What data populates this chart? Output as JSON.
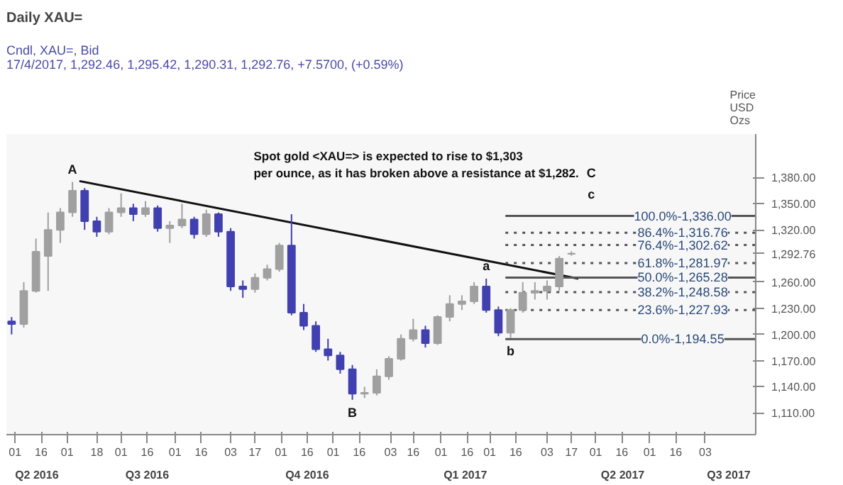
{
  "chart_data": {
    "type": "candlestick",
    "title": "Daily XAU=",
    "subtitle": "Cndl, XAU=, Bid\n17/4/2017, 1,292.46, 1,295.42, 1,290.31, 1,292.76, +7.5700, (+0.59%)",
    "ylabel": "Price\nUSD\nOzs",
    "x": [
      "2016-05-30",
      "2016-06-06",
      "2016-06-13",
      "2016-06-20",
      "2016-06-27",
      "2016-07-04",
      "2016-07-11",
      "2016-07-18",
      "2016-07-25",
      "2016-08-01",
      "2016-08-08",
      "2016-08-15",
      "2016-08-22",
      "2016-08-29",
      "2016-09-05",
      "2016-09-12",
      "2016-09-19",
      "2016-09-26",
      "2016-10-03",
      "2016-10-10",
      "2016-10-17",
      "2016-10-24",
      "2016-10-31",
      "2016-11-07",
      "2016-11-14",
      "2016-11-21",
      "2016-11-28",
      "2016-12-05",
      "2016-12-12",
      "2016-12-19",
      "2016-12-26",
      "2017-01-02",
      "2017-01-09",
      "2017-01-16",
      "2017-01-23",
      "2017-01-30",
      "2017-02-06",
      "2017-02-13",
      "2017-02-20",
      "2017-02-27",
      "2017-03-06",
      "2017-03-13",
      "2017-03-20",
      "2017-03-27",
      "2017-04-03",
      "2017-04-10",
      "2017-04-17"
    ],
    "ohlc": [
      [
        1215,
        1220,
        1200,
        1212
      ],
      [
        1212,
        1260,
        1208,
        1250
      ],
      [
        1250,
        1310,
        1248,
        1295
      ],
      [
        1290,
        1340,
        1250,
        1320
      ],
      [
        1320,
        1345,
        1305,
        1340
      ],
      [
        1340,
        1375,
        1335,
        1365
      ],
      [
        1365,
        1368,
        1320,
        1330
      ],
      [
        1330,
        1335,
        1312,
        1318
      ],
      [
        1318,
        1345,
        1315,
        1340
      ],
      [
        1340,
        1362,
        1335,
        1345
      ],
      [
        1345,
        1350,
        1330,
        1338
      ],
      [
        1338,
        1353,
        1335,
        1345
      ],
      [
        1345,
        1348,
        1318,
        1322
      ],
      [
        1322,
        1330,
        1305,
        1325
      ],
      [
        1325,
        1350,
        1322,
        1332
      ],
      [
        1332,
        1335,
        1310,
        1315
      ],
      [
        1315,
        1343,
        1312,
        1338
      ],
      [
        1338,
        1340,
        1312,
        1318
      ],
      [
        1318,
        1322,
        1250,
        1255
      ],
      [
        1255,
        1262,
        1242,
        1252
      ],
      [
        1252,
        1270,
        1248,
        1265
      ],
      [
        1265,
        1280,
        1262,
        1275
      ],
      [
        1275,
        1305,
        1272,
        1302
      ],
      [
        1302,
        1338,
        1222,
        1225
      ],
      [
        1225,
        1235,
        1205,
        1210
      ],
      [
        1210,
        1215,
        1180,
        1183
      ],
      [
        1183,
        1195,
        1170,
        1176
      ],
      [
        1176,
        1180,
        1155,
        1160
      ],
      [
        1160,
        1165,
        1125,
        1132
      ],
      [
        1132,
        1140,
        1127,
        1133
      ],
      [
        1133,
        1160,
        1130,
        1152
      ],
      [
        1152,
        1175,
        1148,
        1172
      ],
      [
        1172,
        1200,
        1170,
        1195
      ],
      [
        1195,
        1218,
        1192,
        1205
      ],
      [
        1205,
        1210,
        1185,
        1190
      ],
      [
        1190,
        1222,
        1188,
        1220
      ],
      [
        1220,
        1245,
        1215,
        1235
      ],
      [
        1235,
        1245,
        1228,
        1238
      ],
      [
        1238,
        1260,
        1235,
        1255
      ],
      [
        1255,
        1264,
        1225,
        1228
      ],
      [
        1228,
        1232,
        1198,
        1202
      ],
      [
        1202,
        1230,
        1196,
        1228
      ],
      [
        1228,
        1260,
        1225,
        1248
      ],
      [
        1248,
        1260,
        1240,
        1250
      ],
      [
        1250,
        1262,
        1240,
        1255
      ],
      [
        1255,
        1290,
        1250,
        1287
      ],
      [
        1292.46,
        1295.42,
        1290.31,
        1292.76
      ]
    ],
    "colors": [
      "#4040b0",
      "#a0a0a0",
      "#a0a0a0",
      "#a0a0a0",
      "#a0a0a0",
      "#a0a0a0",
      "#4040b0",
      "#4040b0",
      "#a0a0a0",
      "#a0a0a0",
      "#4040b0",
      "#a0a0a0",
      "#4040b0",
      "#a0a0a0",
      "#a0a0a0",
      "#4040b0",
      "#a0a0a0",
      "#4040b0",
      "#4040b0",
      "#4040b0",
      "#a0a0a0",
      "#a0a0a0",
      "#a0a0a0",
      "#4040b0",
      "#4040b0",
      "#4040b0",
      "#4040b0",
      "#4040b0",
      "#4040b0",
      "#a0a0a0",
      "#a0a0a0",
      "#a0a0a0",
      "#a0a0a0",
      "#a0a0a0",
      "#4040b0",
      "#a0a0a0",
      "#a0a0a0",
      "#a0a0a0",
      "#a0a0a0",
      "#4040b0",
      "#4040b0",
      "#a0a0a0",
      "#a0a0a0",
      "#a0a0a0",
      "#a0a0a0",
      "#a0a0a0",
      "#a0a0a0"
    ],
    "series": [
      {
        "type": "line",
        "x": [
          "2016-07-08",
          "2017-04-21"
        ],
        "values": [
          1376,
          1264
        ],
        "color": "#111111",
        "line_style": "solid"
      },
      {
        "type": "line",
        "x": [
          "2017-03-10",
          "2017-08-01"
        ],
        "values": [
          1336,
          1336
        ],
        "color": "#555555",
        "line_style": "solid"
      },
      {
        "type": "line",
        "x": [
          "2017-03-10",
          "2017-08-01"
        ],
        "values": [
          1316.76,
          1316.76
        ],
        "color": "#555555",
        "line_style": "dotted"
      },
      {
        "type": "line",
        "x": [
          "2017-03-10",
          "2017-08-01"
        ],
        "values": [
          1302.62,
          1302.62
        ],
        "color": "#555555",
        "line_style": "dotted"
      },
      {
        "type": "line",
        "x": [
          "2017-03-10",
          "2017-08-01"
        ],
        "values": [
          1281.97,
          1281.97
        ],
        "color": "#555555",
        "line_style": "dotted"
      },
      {
        "type": "line",
        "x": [
          "2017-03-10",
          "2017-08-01"
        ],
        "values": [
          1265.28,
          1265.28
        ],
        "color": "#555555",
        "line_style": "solid"
      },
      {
        "type": "line",
        "x": [
          "2017-03-10",
          "2017-08-01"
        ],
        "values": [
          1248.58,
          1248.58
        ],
        "color": "#555555",
        "line_style": "dotted"
      },
      {
        "type": "line",
        "x": [
          "2017-03-10",
          "2017-08-01"
        ],
        "values": [
          1227.93,
          1227.93
        ],
        "color": "#555555",
        "line_style": "dotted"
      },
      {
        "type": "line",
        "x": [
          "2017-03-10",
          "2017-08-01"
        ],
        "values": [
          1194.55,
          1194.55
        ],
        "color": "#555555",
        "line_style": "solid"
      }
    ],
    "annotations": [
      "Spot gold <XAU=> is expected to rise to $1,303\nper ounce, as it has broken above a resistance at $1,282.",
      {
        "text": "A",
        "x": "2016-07-04",
        "y": 1375
      },
      {
        "text": "B",
        "x": "2016-12-12",
        "y": 1125
      },
      {
        "text": "a",
        "x": "2017-02-27",
        "y": 1264
      },
      {
        "text": "b",
        "x": "2017-03-13",
        "y": 1196
      },
      "C",
      "c",
      {
        "text": "100.0%-1,336.00",
        "x": "2017-06-20",
        "y": 1336
      },
      {
        "text": "86.4%-1,316.76",
        "x": "2017-06-20",
        "y": 1316.76
      },
      {
        "text": "76.4%-1,302.62",
        "x": "2017-06-20",
        "y": 1302.62
      },
      {
        "text": "61.8%-1,281.97",
        "x": "2017-06-20",
        "y": 1281.97
      },
      {
        "text": "50.0%-1,265.28",
        "x": "2017-06-20",
        "y": 1265.28
      },
      {
        "text": "38.2%-1,248.58",
        "x": "2017-06-20",
        "y": 1248.58
      },
      {
        "text": "23.6%-1,227.93",
        "x": "2017-06-20",
        "y": 1227.93
      },
      {
        "text": "0.0%-1,194.55",
        "x": "2017-06-20",
        "y": 1194.55
      },
      "Q2 2016",
      "Q3 2016",
      "Q4 2016",
      "Q1 2017",
      "Q2 2017",
      "Q3 2017"
    ],
    "xlim": [
      "2016-05-27",
      "2017-08-01"
    ],
    "xticks": [
      {
        "value": "2016-06-01",
        "label": "01"
      },
      {
        "value": "2016-06-16",
        "label": "16"
      },
      {
        "value": "2016-07-01",
        "label": "01"
      },
      {
        "value": "2016-07-18",
        "label": "18"
      },
      {
        "value": "2016-08-01",
        "label": "01"
      },
      {
        "value": "2016-08-16",
        "label": "16"
      },
      {
        "value": "2016-09-01",
        "label": "01"
      },
      {
        "value": "2016-09-16",
        "label": "16"
      },
      {
        "value": "2016-10-03",
        "label": "03"
      },
      {
        "value": "2016-10-17",
        "label": "17"
      },
      {
        "value": "2016-11-01",
        "label": "01"
      },
      {
        "value": "2016-11-16",
        "label": "16"
      },
      {
        "value": "2016-12-01",
        "label": "01"
      },
      {
        "value": "2016-12-16",
        "label": "16"
      },
      {
        "value": "2017-01-03",
        "label": "03"
      },
      {
        "value": "2017-01-16",
        "label": "16"
      },
      {
        "value": "2017-02-01",
        "label": "01"
      },
      {
        "value": "2017-02-16",
        "label": "16"
      },
      {
        "value": "2017-03-01",
        "label": "01"
      },
      {
        "value": "2017-03-16",
        "label": "16"
      },
      {
        "value": "2017-04-03",
        "label": "03"
      },
      {
        "value": "2017-04-17",
        "label": "17"
      },
      {
        "value": "2017-05-01",
        "label": "01"
      },
      {
        "value": "2017-05-16",
        "label": "16"
      },
      {
        "value": "2017-06-01",
        "label": "01"
      },
      {
        "value": "2017-06-16",
        "label": "16"
      },
      {
        "value": "2017-07-03",
        "label": "03"
      }
    ],
    "ylim": [
      1085,
      1430
    ],
    "yticks": [
      {
        "value": 1110,
        "label": "1,110.00"
      },
      {
        "value": 1140,
        "label": "1,140.00"
      },
      {
        "value": 1170,
        "label": "1,170.00"
      },
      {
        "value": 1200,
        "label": "1,200.00"
      },
      {
        "value": 1230,
        "label": "1,230.00"
      },
      {
        "value": 1260,
        "label": "1,260.00"
      },
      {
        "value": 1292.76,
        "label": "1,292.76"
      },
      {
        "value": 1320,
        "label": "1,320.00"
      },
      {
        "value": 1350,
        "label": "1,350.00"
      },
      {
        "value": 1380,
        "label": "1,380.00"
      }
    ],
    "grid": false
  }
}
